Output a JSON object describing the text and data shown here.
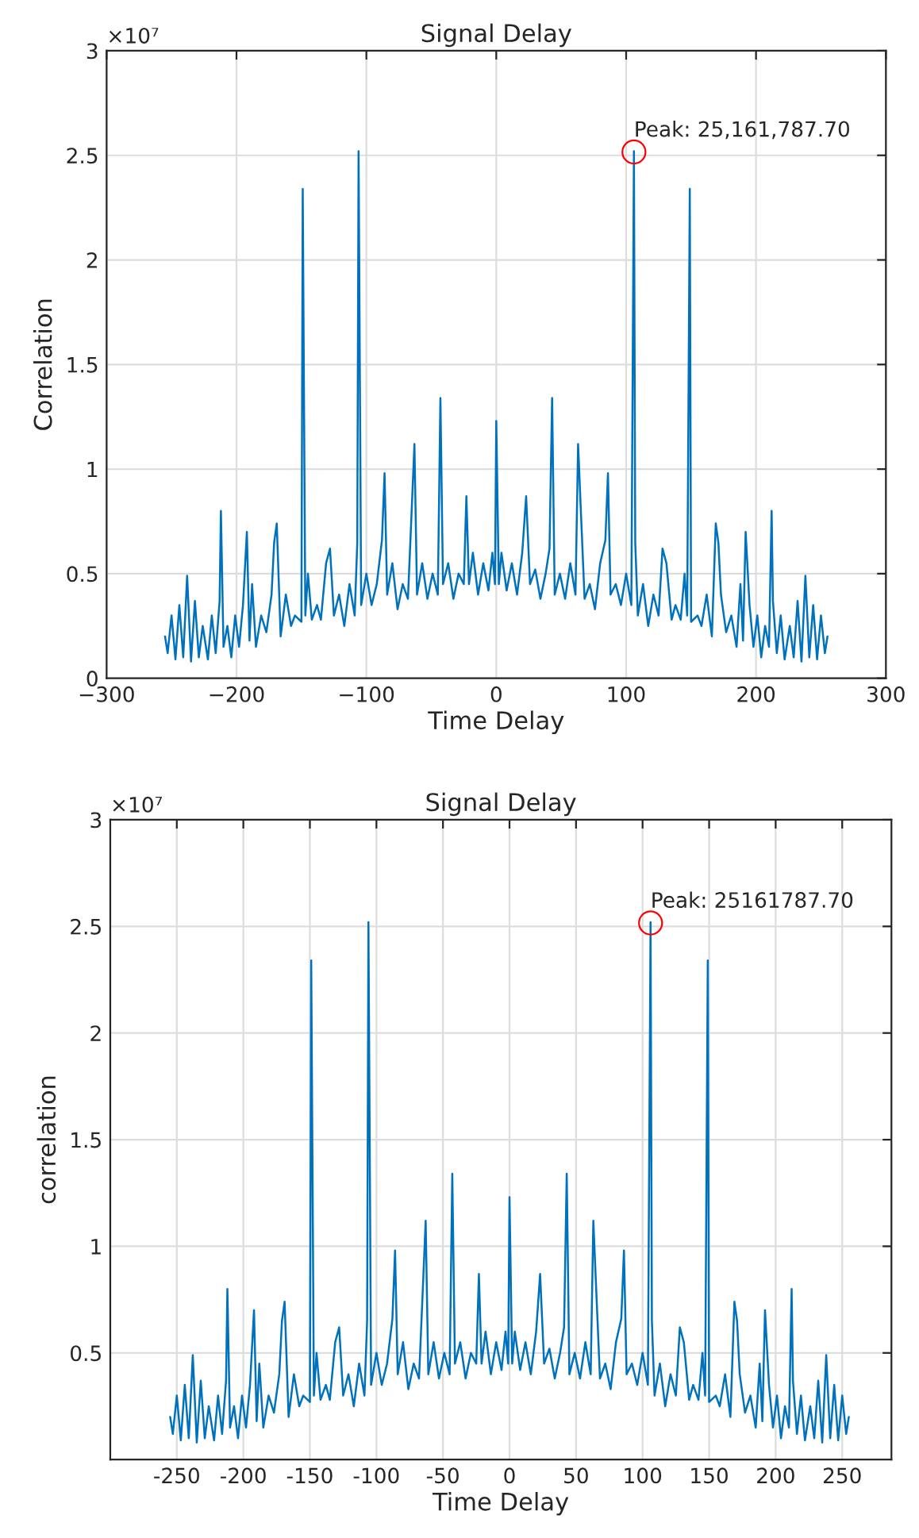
{
  "chart_data": [
    {
      "type": "line",
      "title": "Signal Delay",
      "xlabel": "Time Delay",
      "ylabel": "Correlation",
      "annotations": [
        "×10⁷",
        {
          "text": "Peak: 25,161,787.70",
          "x": 106,
          "y": 2.516
        }
      ],
      "x": [
        -255,
        -253,
        -250,
        -247,
        -244,
        -241,
        -238,
        -235,
        -232,
        -229,
        -226,
        -222,
        -219,
        -216,
        -213,
        -212,
        -210,
        -207,
        -204,
        -201,
        -198,
        -195,
        -192,
        -190,
        -188,
        -185,
        -181,
        -177,
        -173,
        -171,
        -169,
        -166,
        -162,
        -158,
        -155,
        -150,
        -149,
        -147,
        -145,
        -142,
        -138,
        -135,
        -131,
        -128,
        -125,
        -121,
        -117,
        -113,
        -109,
        -107,
        -106,
        -104,
        -100,
        -96,
        -92,
        -88,
        -86,
        -84,
        -80,
        -76,
        -72,
        -68,
        -65,
        -63,
        -61,
        -57,
        -53,
        -49,
        -45,
        -43,
        -41,
        -37,
        -33,
        -29,
        -25,
        -23,
        -21,
        -18,
        -14,
        -10,
        -6,
        -3,
        -1,
        0,
        2,
        4,
        8,
        12,
        16,
        20,
        23,
        26,
        30,
        34,
        38,
        41,
        43,
        45,
        49,
        53,
        57,
        61,
        63,
        65,
        68,
        72,
        76,
        80,
        84,
        86,
        88,
        92,
        96,
        100,
        104,
        106,
        107,
        109,
        113,
        117,
        121,
        125,
        128,
        131,
        135,
        138,
        142,
        145,
        147,
        149,
        150,
        155,
        158,
        162,
        166,
        169,
        171,
        173,
        177,
        181,
        185,
        188,
        190,
        192,
        195,
        198,
        201,
        204,
        207,
        210,
        212,
        213,
        216,
        219,
        222,
        226,
        229,
        232,
        235,
        238,
        241,
        244,
        247,
        250,
        253,
        255
      ],
      "series": [
        {
          "color": "#0072bd",
          "values": [
            0.2,
            0.12,
            0.3,
            0.09,
            0.35,
            0.1,
            0.49,
            0.08,
            0.37,
            0.1,
            0.25,
            0.09,
            0.3,
            0.12,
            0.37,
            0.8,
            0.15,
            0.25,
            0.1,
            0.3,
            0.15,
            0.35,
            0.7,
            0.18,
            0.45,
            0.15,
            0.3,
            0.22,
            0.4,
            0.65,
            0.74,
            0.2,
            0.4,
            0.25,
            0.3,
            0.27,
            2.34,
            0.3,
            0.5,
            0.28,
            0.35,
            0.28,
            0.55,
            0.62,
            0.3,
            0.4,
            0.25,
            0.45,
            0.3,
            0.65,
            2.52,
            0.35,
            0.5,
            0.35,
            0.45,
            0.66,
            0.98,
            0.4,
            0.55,
            0.33,
            0.45,
            0.38,
            0.82,
            1.12,
            0.4,
            0.55,
            0.38,
            0.5,
            0.4,
            1.34,
            0.45,
            0.55,
            0.38,
            0.5,
            0.45,
            0.87,
            0.45,
            0.6,
            0.4,
            0.55,
            0.42,
            0.6,
            0.45,
            1.23,
            0.45,
            0.6,
            0.42,
            0.55,
            0.4,
            0.6,
            0.87,
            0.45,
            0.52,
            0.38,
            0.5,
            0.62,
            1.34,
            0.4,
            0.5,
            0.38,
            0.55,
            0.4,
            1.12,
            0.82,
            0.38,
            0.45,
            0.33,
            0.55,
            0.66,
            0.98,
            0.4,
            0.45,
            0.35,
            0.5,
            0.35,
            2.52,
            0.65,
            0.3,
            0.45,
            0.25,
            0.4,
            0.3,
            0.62,
            0.55,
            0.28,
            0.35,
            0.28,
            0.5,
            0.3,
            2.34,
            0.27,
            0.3,
            0.25,
            0.4,
            0.2,
            0.74,
            0.65,
            0.4,
            0.22,
            0.3,
            0.15,
            0.45,
            0.18,
            0.7,
            0.35,
            0.15,
            0.3,
            0.1,
            0.25,
            0.15,
            0.8,
            0.37,
            0.12,
            0.3,
            0.09,
            0.25,
            0.1,
            0.37,
            0.08,
            0.49,
            0.1,
            0.35,
            0.09,
            0.3,
            0.12,
            0.2
          ]
        },
        {
          "type": "scatter",
          "marker": "circle",
          "color": "#ff0000",
          "x": [
            106
          ],
          "values": [
            2.516
          ]
        }
      ],
      "xlim": [
        -300,
        300
      ],
      "xticks": [
        {
          "value": -300,
          "label": "−300"
        },
        {
          "value": -200,
          "label": "−200"
        },
        {
          "value": -100,
          "label": "−100"
        },
        0,
        100,
        200,
        300
      ],
      "ylim": [
        0,
        3
      ],
      "yticks": [
        0,
        0.5,
        1,
        1.5,
        2,
        2.5,
        3
      ],
      "grid": true
    },
    {
      "type": "line",
      "title": "Signal Delay",
      "xlabel": "Time Delay",
      "ylabel": "correlation",
      "annotations": [
        "×10⁷",
        {
          "text": "Peak: 25161787.70",
          "x": 106,
          "y": 2.516
        }
      ],
      "x": [
        -255,
        -253,
        -250,
        -247,
        -244,
        -241,
        -238,
        -235,
        -232,
        -229,
        -226,
        -222,
        -219,
        -216,
        -213,
        -212,
        -210,
        -207,
        -204,
        -201,
        -198,
        -195,
        -192,
        -190,
        -188,
        -185,
        -181,
        -177,
        -173,
        -171,
        -169,
        -166,
        -162,
        -158,
        -155,
        -150,
        -149,
        -147,
        -145,
        -142,
        -138,
        -135,
        -131,
        -128,
        -125,
        -121,
        -117,
        -113,
        -109,
        -107,
        -106,
        -104,
        -100,
        -96,
        -92,
        -88,
        -86,
        -84,
        -80,
        -76,
        -72,
        -68,
        -65,
        -63,
        -61,
        -57,
        -53,
        -49,
        -45,
        -43,
        -41,
        -37,
        -33,
        -29,
        -25,
        -23,
        -21,
        -18,
        -14,
        -10,
        -6,
        -3,
        -1,
        0,
        2,
        4,
        8,
        12,
        16,
        20,
        23,
        26,
        30,
        34,
        38,
        41,
        43,
        45,
        49,
        53,
        57,
        61,
        63,
        65,
        68,
        72,
        76,
        80,
        84,
        86,
        88,
        92,
        96,
        100,
        104,
        106,
        107,
        109,
        113,
        117,
        121,
        125,
        128,
        131,
        135,
        138,
        142,
        145,
        147,
        149,
        150,
        155,
        158,
        162,
        166,
        169,
        171,
        173,
        177,
        181,
        185,
        188,
        190,
        192,
        195,
        198,
        201,
        204,
        207,
        210,
        212,
        213,
        216,
        219,
        222,
        226,
        229,
        232,
        235,
        238,
        241,
        244,
        247,
        250,
        253,
        255
      ],
      "series": [
        {
          "color": "#0072bd",
          "values": [
            0.2,
            0.12,
            0.3,
            0.09,
            0.35,
            0.1,
            0.49,
            0.08,
            0.37,
            0.1,
            0.25,
            0.09,
            0.3,
            0.12,
            0.37,
            0.8,
            0.15,
            0.25,
            0.1,
            0.3,
            0.15,
            0.35,
            0.7,
            0.18,
            0.45,
            0.15,
            0.3,
            0.22,
            0.4,
            0.65,
            0.74,
            0.2,
            0.4,
            0.25,
            0.3,
            0.27,
            2.34,
            0.3,
            0.5,
            0.28,
            0.35,
            0.28,
            0.55,
            0.62,
            0.3,
            0.4,
            0.25,
            0.45,
            0.3,
            0.65,
            2.52,
            0.35,
            0.5,
            0.35,
            0.45,
            0.66,
            0.98,
            0.4,
            0.55,
            0.33,
            0.45,
            0.38,
            0.82,
            1.12,
            0.4,
            0.55,
            0.38,
            0.5,
            0.4,
            1.34,
            0.45,
            0.55,
            0.38,
            0.5,
            0.45,
            0.87,
            0.45,
            0.6,
            0.4,
            0.55,
            0.42,
            0.6,
            0.45,
            1.23,
            0.45,
            0.6,
            0.42,
            0.55,
            0.4,
            0.6,
            0.87,
            0.45,
            0.52,
            0.38,
            0.5,
            0.62,
            1.34,
            0.4,
            0.5,
            0.38,
            0.55,
            0.4,
            1.12,
            0.82,
            0.38,
            0.45,
            0.33,
            0.55,
            0.66,
            0.98,
            0.4,
            0.45,
            0.35,
            0.5,
            0.35,
            2.52,
            0.65,
            0.3,
            0.45,
            0.25,
            0.4,
            0.3,
            0.62,
            0.55,
            0.28,
            0.35,
            0.28,
            0.5,
            0.3,
            2.34,
            0.27,
            0.3,
            0.25,
            0.4,
            0.2,
            0.74,
            0.65,
            0.4,
            0.22,
            0.3,
            0.15,
            0.45,
            0.18,
            0.7,
            0.35,
            0.15,
            0.3,
            0.1,
            0.25,
            0.15,
            0.8,
            0.37,
            0.12,
            0.3,
            0.09,
            0.25,
            0.1,
            0.37,
            0.08,
            0.49,
            0.1,
            0.35,
            0.09,
            0.3,
            0.12,
            0.2
          ]
        },
        {
          "type": "scatter",
          "marker": "circle",
          "color": "#ff0000",
          "x": [
            106
          ],
          "values": [
            2.516
          ]
        }
      ],
      "xlim": [
        -300,
        287
      ],
      "xticks": [
        -250,
        -200,
        -150,
        -100,
        -50,
        0,
        50,
        100,
        150,
        200,
        250
      ],
      "ylim": [
        0,
        3
      ],
      "yticks": [
        0.5,
        1,
        1.5,
        2,
        2.5,
        3
      ],
      "grid": true
    }
  ]
}
